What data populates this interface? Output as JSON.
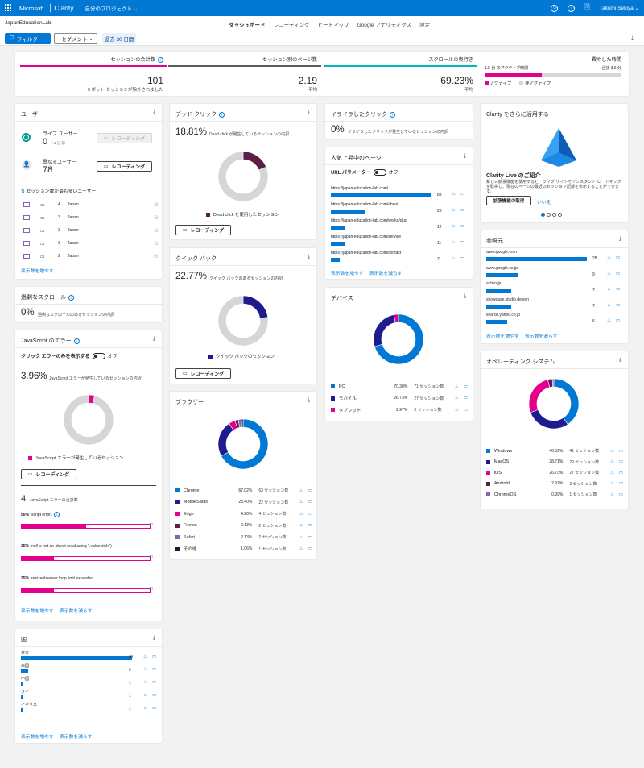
{
  "topbar": {
    "ms": "Microsoft",
    "app": "Clarity",
    "project_menu": "自分のプロジェクト",
    "user": "Takumi Sekiya"
  },
  "nav": {
    "project": "JapanEducationLab",
    "tabs": [
      "ダッシュボード",
      "レコーディング",
      "ヒートマップ",
      "Google アナリティクス",
      "設定"
    ]
  },
  "toolbar": {
    "filter": "フィルター",
    "segment": "セグメント",
    "range": "過去 30 日間"
  },
  "summary": {
    "sessions": {
      "label": "セッションの合計数",
      "value": "101",
      "note": "5 ボット セッションが除外されました"
    },
    "pages": {
      "label": "セッション別のページ数",
      "value": "2.19",
      "note": "平均"
    },
    "scroll": {
      "label": "スクロールの奥行き",
      "value": "69.23%",
      "note": "平均"
    },
    "time": {
      "label": "費やした時間",
      "active": "1.5 分 のアクティブ時間",
      "total": "合計 3.6 分",
      "active_fraction": 0.42,
      "legend_active": "アクティブ",
      "legend_inactive": "非アクティブ"
    }
  },
  "users": {
    "title": "ユーザー",
    "live_label": "ライブ ユーザー",
    "live_value": "0",
    "live_note": "< 1 分 前",
    "unique_label": "異なるユーザー",
    "unique_value": "78",
    "rec": "レコーディング",
    "top_label": "セッション数が最も多いユーザー",
    "rows": [
      {
        "sessions": "4",
        "country": "Japan"
      },
      {
        "sessions": "3",
        "country": "Japan"
      },
      {
        "sessions": "3",
        "country": "Japan"
      },
      {
        "sessions": "3",
        "country": "Japan"
      },
      {
        "sessions": "2",
        "country": "Japan"
      }
    ],
    "more": "表示数を増やす"
  },
  "scroll_card": {
    "title": "過剰なスクロール",
    "pct": "0%",
    "desc": "過剰なスクロールのあるセッションの内訳"
  },
  "js": {
    "title": "JavaScript のエラー",
    "toggle_label": "クリック エラーのみを表示する",
    "toggle_state": "オフ",
    "pct": "3.96%",
    "desc": "JavaScript エラーが発生しているセッションの内訳",
    "fraction": 0.0396,
    "legend": "JavaScript エラーが発生しているセッション",
    "rec": "レコーディング",
    "total": "4",
    "total_label": "JavaScript エラーの合計数",
    "errors": [
      {
        "pct": "50%",
        "name": "script error.",
        "fill": 0.5
      },
      {
        "pct": "25%",
        "name": "null is not an object (evaluating 'i.value.style')",
        "fill": 0.25
      },
      {
        "pct": "25%",
        "name": "resizeobserver loop limit exceeded",
        "fill": 0.25
      }
    ],
    "more": "表示数を増やす",
    "less": "表示数を減らす"
  },
  "country": {
    "title": "国",
    "rows": [
      {
        "name": "日本",
        "value": "91",
        "fill": 1
      },
      {
        "name": "米国",
        "value": "6",
        "fill": 0.066
      },
      {
        "name": "中国",
        "value": "1",
        "fill": 0.011
      },
      {
        "name": "タイ",
        "value": "1",
        "fill": 0.011
      },
      {
        "name": "イギリス",
        "value": "1",
        "fill": 0.011
      }
    ],
    "more": "表示数を増やす",
    "less": "表示数を減らす"
  },
  "dead": {
    "title": "デッド クリック",
    "pct": "18.81%",
    "desc": "Dead click が発生しているセッションの内訳",
    "fraction": 0.1881,
    "legend": "Dead click を使用したセッション",
    "rec": "レコーディング",
    "color": "#5c1f4a"
  },
  "quick": {
    "title": "クイック バック",
    "pct": "22.77%",
    "desc": "クイック バックのあるセッションの内訳",
    "fraction": 0.2277,
    "legend": "クイック バックのセッション",
    "rec": "レコーディング",
    "color": "#1e1b8f"
  },
  "browser": {
    "title": "ブラウザー",
    "rows": [
      {
        "name": "Chrome",
        "pct": "67.02%",
        "sessions": "63 セッション数",
        "value": 67.02,
        "color": "#0078d4"
      },
      {
        "name": "MobileSafari",
        "pct": "23.40%",
        "sessions": "22 セッション数",
        "value": 23.4,
        "color": "#1e1b8f"
      },
      {
        "name": "Edge",
        "pct": "4.26%",
        "sessions": "4 セッション数",
        "value": 4.26,
        "color": "#e3008c"
      },
      {
        "name": "Firefox",
        "pct": "2.13%",
        "sessions": "2 セッション数",
        "value": 2.13,
        "color": "#5c1f4a"
      },
      {
        "name": "Safari",
        "pct": "2.13%",
        "sessions": "2 セッション数",
        "value": 2.13,
        "color": "#8764b8"
      },
      {
        "name": "その他",
        "pct": "1.06%",
        "sessions": "1 セッション数",
        "value": 1.06,
        "color": "#1b1b3a"
      }
    ]
  },
  "rage": {
    "title": "イライラしたクリック",
    "pct": "0%",
    "desc": "イライラしたクリックが発生しているセッションの内訳"
  },
  "popular": {
    "title": "人気上昇中のページ",
    "param_label": "URL パラメーター",
    "param_state": "オフ",
    "rows": [
      {
        "url": "https://japan-education-lab.com/",
        "value": "83",
        "fill": 1
      },
      {
        "url": "https://japan-education-lab.com/about",
        "value": "28",
        "fill": 0.337
      },
      {
        "url": "https://japan-education-lab.com/works/slug",
        "value": "12",
        "fill": 0.145
      },
      {
        "url": "https://japan-education-lab.com/service",
        "value": "11",
        "fill": 0.133
      },
      {
        "url": "https://japan-education-lab.com/contact",
        "value": "7",
        "fill": 0.084
      }
    ],
    "more": "表示数を増やす",
    "less": "表示数を減らす"
  },
  "device": {
    "title": "デバイス",
    "rows": [
      {
        "name": "PC",
        "pct": "70.30%",
        "sessions": "71 セッション数",
        "value": 70.3,
        "color": "#0078d4"
      },
      {
        "name": "モバイル",
        "pct": "26.73%",
        "sessions": "27 セッション数",
        "value": 26.73,
        "color": "#1e1b8f"
      },
      {
        "name": "タブレット",
        "pct": "2.97%",
        "sessions": "3 セッション数",
        "value": 2.97,
        "color": "#e3008c"
      }
    ]
  },
  "promo": {
    "title": "Clarity をさらに活用する",
    "heading": "Clarity Live のご紹介",
    "body": "新しい拡張機能を使用すると、ライブ サイトでインスタント ヒートマップを取得し、現在のページの最近のセッション記録を表示することができます。",
    "get": "拡張機能の取得",
    "no": "いいえ"
  },
  "referrer": {
    "title": "参照元",
    "rows": [
      {
        "name": "www.google.com",
        "value": "28",
        "fill": 1
      },
      {
        "name": "www.google.co.jp",
        "value": "9",
        "fill": 0.32
      },
      {
        "name": "activo.jp",
        "value": "7",
        "fill": 0.25
      },
      {
        "name": "showcase.studio.design",
        "value": "7",
        "fill": 0.25
      },
      {
        "name": "search.yahoo.co.jp",
        "value": "6",
        "fill": 0.21
      }
    ],
    "more": "表示数を増やす",
    "less": "表示数を減らす"
  },
  "os": {
    "title": "オペレーティング システム",
    "rows": [
      {
        "name": "Windows",
        "pct": "40.59%",
        "sessions": "41 セッション数",
        "value": 40.59,
        "color": "#0078d4"
      },
      {
        "name": "MacOS",
        "pct": "28.71%",
        "sessions": "29 セッション数",
        "value": 28.71,
        "color": "#1e1b8f"
      },
      {
        "name": "iOS",
        "pct": "26.73%",
        "sessions": "27 セッション数",
        "value": 26.73,
        "color": "#e3008c"
      },
      {
        "name": "Android",
        "pct": "2.97%",
        "sessions": "3 セッション数",
        "value": 2.97,
        "color": "#5c1f4a"
      },
      {
        "name": "ChromeOS",
        "pct": "0.99%",
        "sessions": "1 セッション数",
        "value": 0.99,
        "color": "#8764b8"
      }
    ]
  }
}
